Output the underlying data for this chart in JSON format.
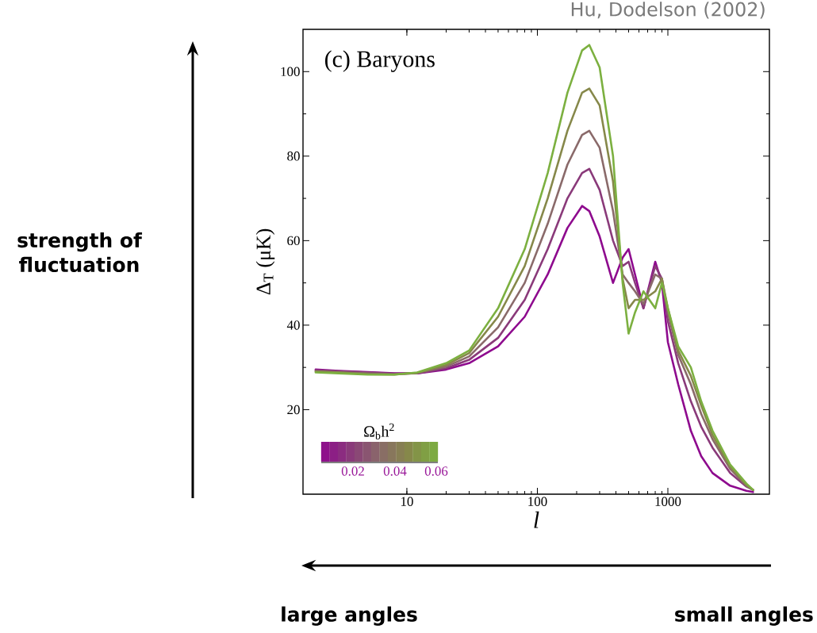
{
  "chart_data": {
    "type": "line",
    "title": "(c) Baryons",
    "xlabel": "l",
    "ylabel": "Δ$_{T}$ (μK)",
    "annotations": [
      "Hu, Dodelson (2002)",
      "strength of fluctuation",
      "large angles",
      "small angles",
      "Ω$_{b}$h$^{2}$",
      "0.02",
      "0.04",
      "0.06"
    ],
    "log": "x",
    "xlim": [
      1.6,
      6000
    ],
    "ylim": [
      0,
      110
    ],
    "xticks": [
      10,
      100,
      1000
    ],
    "yticks": [
      20,
      40,
      60,
      80,
      100
    ],
    "marker": "none",
    "x": [
      2,
      3,
      5,
      8,
      12,
      20,
      30,
      50,
      80,
      120,
      170,
      220,
      250,
      300,
      380,
      450,
      500,
      560,
      650,
      800,
      900,
      1000,
      1200,
      1500,
      1800,
      2200,
      3000,
      4000,
      4500
    ],
    "series": [
      {
        "color": "#8e0a8e",
        "values": [
          29.5,
          29.2,
          28.9,
          28.6,
          28.6,
          29.5,
          31,
          35,
          42,
          52,
          63,
          68.2,
          67,
          61,
          50,
          56,
          58,
          52,
          44,
          55,
          50,
          36,
          26,
          15,
          9,
          5,
          2,
          0.8,
          0.5
        ]
      },
      {
        "color": "#8a3a7a",
        "values": [
          29.3,
          29.1,
          28.8,
          28.5,
          28.6,
          29.8,
          31.8,
          37,
          46,
          58,
          70,
          76,
          77,
          72,
          60,
          54,
          55,
          50,
          44,
          54,
          51,
          41,
          31,
          22,
          16,
          11,
          5,
          1.8,
          1
        ]
      },
      {
        "color": "#8a6a6a",
        "values": [
          29.1,
          28.9,
          28.6,
          28.4,
          28.7,
          30.2,
          32.6,
          39.5,
          50,
          64,
          78,
          85,
          86,
          82,
          67,
          52,
          50,
          48,
          45,
          52,
          51,
          43,
          33,
          26,
          19,
          13,
          6,
          2,
          1
        ]
      },
      {
        "color": "#86884a",
        "values": [
          29.0,
          28.8,
          28.4,
          28.3,
          28.7,
          30.6,
          33.4,
          42,
          54,
          70,
          86,
          95,
          96,
          92,
          74,
          51,
          44,
          46,
          46,
          48,
          51,
          44,
          34,
          28,
          21,
          14,
          6.5,
          2.2,
          1
        ]
      },
      {
        "color": "#7cb040",
        "values": [
          28.8,
          28.6,
          28.3,
          28.3,
          28.8,
          31,
          34,
          44,
          58,
          76,
          95,
          105,
          106.3,
          101,
          80,
          50,
          38,
          43,
          48,
          44,
          50,
          44,
          35,
          30,
          22,
          15,
          7,
          2.5,
          1
        ]
      }
    ]
  }
}
